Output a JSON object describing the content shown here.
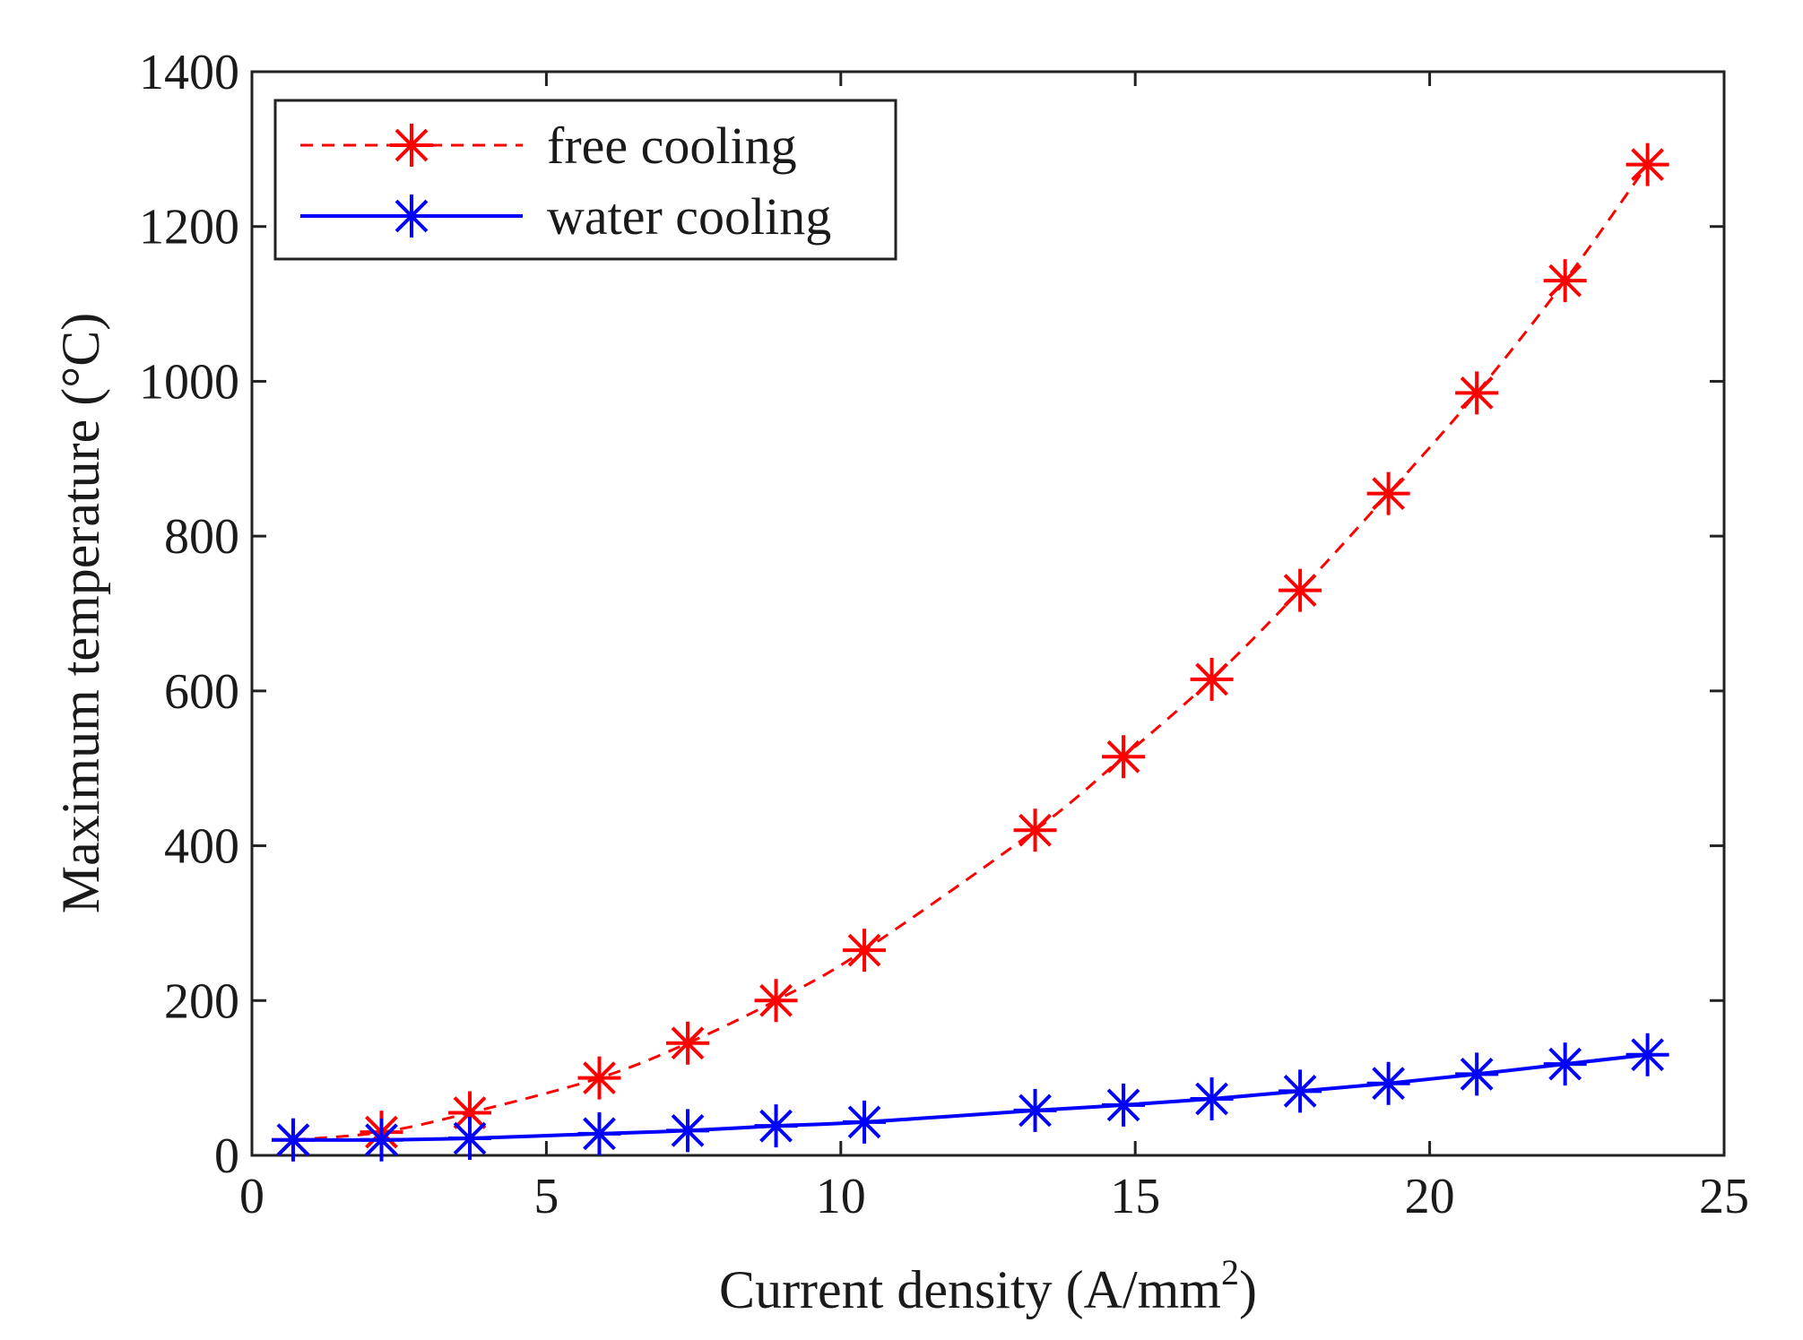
{
  "chart_data": {
    "type": "line",
    "title": "",
    "xlabel": "Current density (A/mm",
    "xlabel_sup": "2",
    "xlabel_close": ")",
    "ylabel": "Maximum temperature (°C)",
    "xlim": [
      0,
      25
    ],
    "ylim": [
      0,
      1400
    ],
    "xticks": [
      0,
      5,
      10,
      15,
      20,
      25
    ],
    "yticks": [
      0,
      200,
      400,
      600,
      800,
      1000,
      1200,
      1400
    ],
    "grid": false,
    "legend_position": "top-left",
    "series": [
      {
        "name": "free cooling",
        "color": "#ff0000",
        "line_style": "dashed",
        "marker": "asterisk",
        "x": [
          0.7,
          2.2,
          3.7,
          5.9,
          7.4,
          8.9,
          10.4,
          13.3,
          14.8,
          16.3,
          17.8,
          19.3,
          20.8,
          22.3,
          23.7
        ],
        "y": [
          20,
          30,
          55,
          100,
          145,
          200,
          265,
          420,
          515,
          615,
          730,
          855,
          985,
          1130,
          1280
        ]
      },
      {
        "name": "water cooling",
        "color": "#0000ff",
        "line_style": "solid",
        "marker": "asterisk",
        "x": [
          0.7,
          2.2,
          3.7,
          5.9,
          7.4,
          8.9,
          10.4,
          13.3,
          14.8,
          16.3,
          17.8,
          19.3,
          20.8,
          22.3,
          23.7
        ],
        "y": [
          20,
          20,
          22,
          28,
          32,
          38,
          43,
          58,
          65,
          73,
          83,
          93,
          105,
          118,
          130
        ]
      }
    ]
  }
}
